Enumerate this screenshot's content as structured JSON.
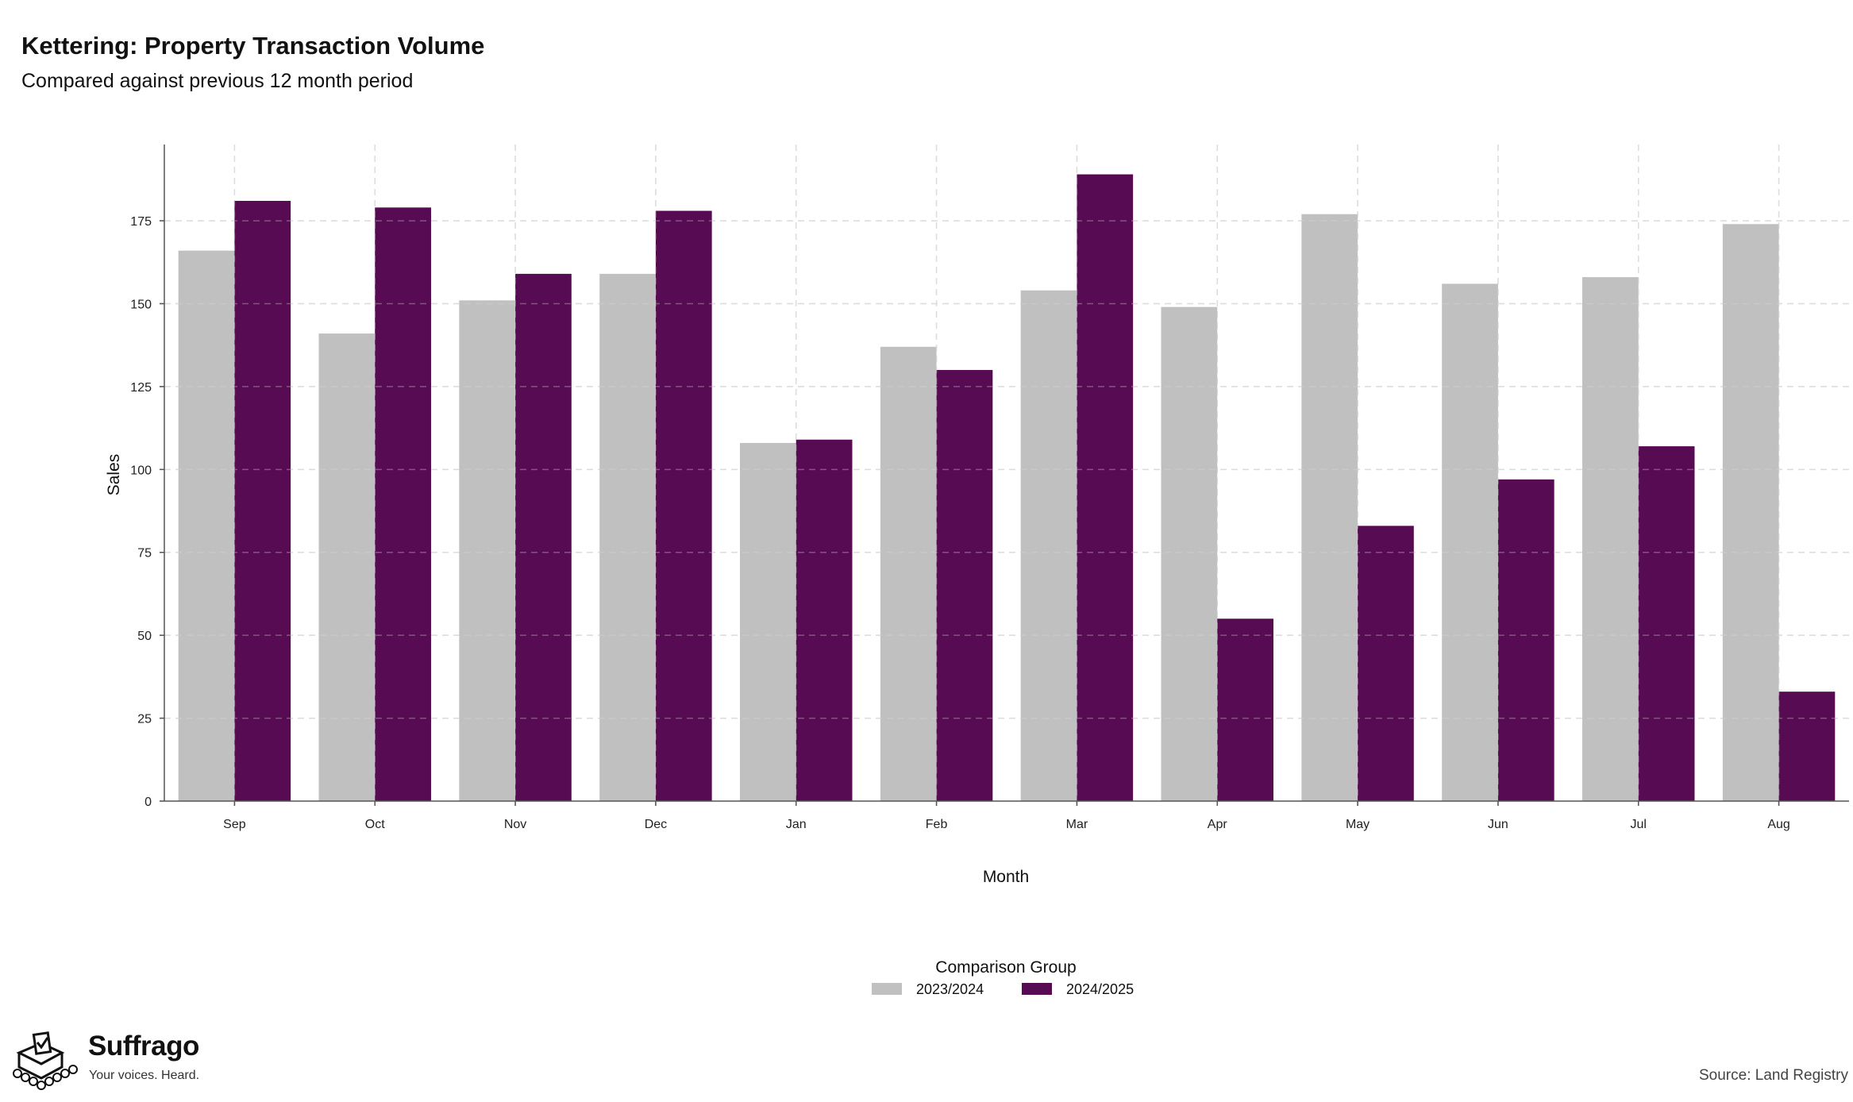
{
  "header": {
    "title": "Kettering: Property Transaction Volume",
    "subtitle": "Compared against previous 12 month period"
  },
  "chart_data": {
    "type": "bar",
    "title": "Kettering: Property Transaction Volume",
    "subtitle": "Compared against previous 12 month period",
    "xlabel": "Month",
    "ylabel": "Sales",
    "categories": [
      "Sep",
      "Oct",
      "Nov",
      "Dec",
      "Jan",
      "Feb",
      "Mar",
      "Apr",
      "May",
      "Jun",
      "Jul",
      "Aug"
    ],
    "series": [
      {
        "name": "2023/2024",
        "color": "#c0c0c0",
        "values": [
          166,
          141,
          151,
          159,
          108,
          137,
          154,
          149,
          177,
          156,
          158,
          174
        ]
      },
      {
        "name": "2024/2025",
        "color": "#560b52",
        "values": [
          181,
          179,
          159,
          178,
          109,
          130,
          189,
          55,
          83,
          97,
          107,
          33
        ]
      }
    ],
    "yticks": [
      0,
      25,
      50,
      75,
      100,
      125,
      150,
      175
    ],
    "ylim": [
      0,
      198
    ],
    "grid": true,
    "legend": {
      "title": "Comparison Group",
      "placement": "bottom"
    }
  },
  "footer": {
    "logo_name": "Suffrago",
    "logo_tagline": "Your voices. Heard.",
    "source": "Source: Land Registry"
  }
}
